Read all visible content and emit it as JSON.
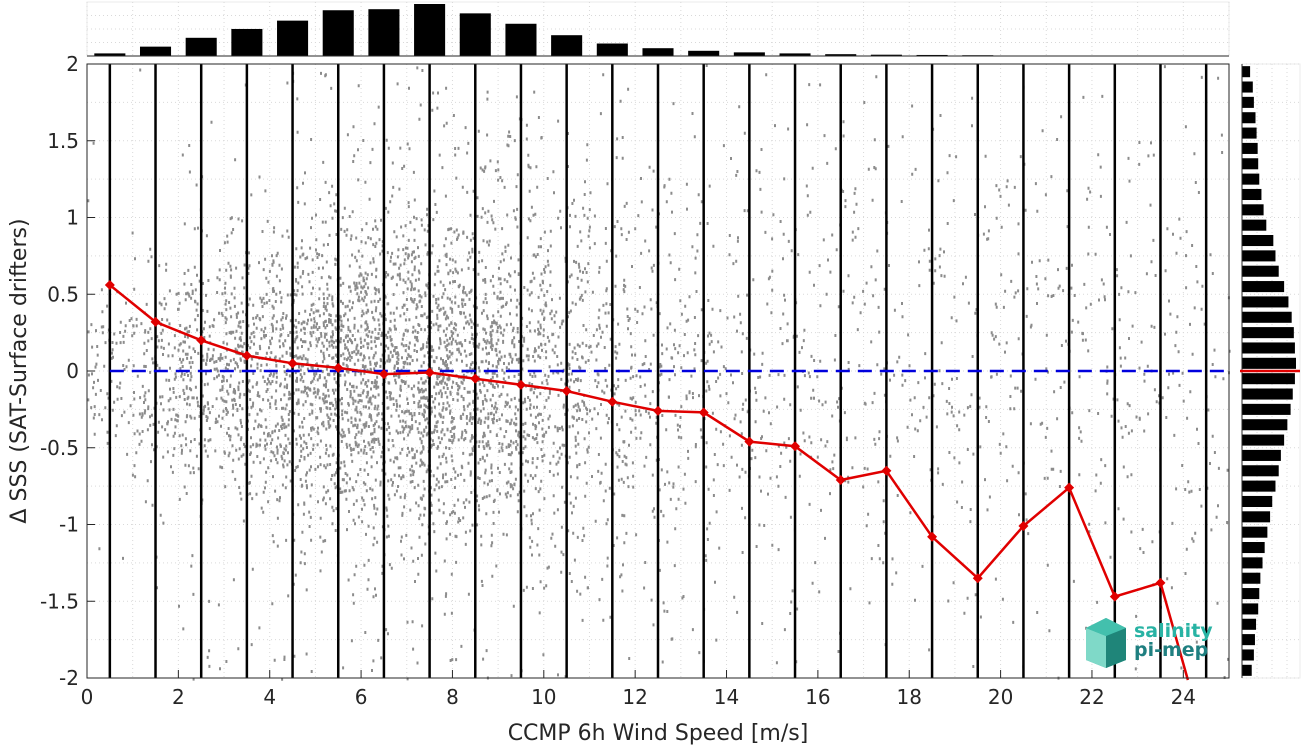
{
  "chart_data": {
    "type": "scatter",
    "title": "",
    "xlabel": "CCMP 6h Wind Speed [m/s]",
    "ylabel": "Δ SSS (SAT-Surface drifters)",
    "xlim": [
      0,
      25
    ],
    "ylim": [
      -2,
      2
    ],
    "x_ticks": [
      0,
      2,
      4,
      6,
      8,
      10,
      12,
      14,
      16,
      18,
      20,
      22,
      24
    ],
    "y_ticks": [
      2,
      1.5,
      1,
      0.5,
      0,
      -0.5,
      -1,
      -1.5,
      -2
    ],
    "grid": true,
    "bin_edges": [
      0.5,
      1.5,
      2.5,
      3.5,
      4.5,
      5.5,
      6.5,
      7.5,
      8.5,
      9.5,
      10.5,
      11.5,
      12.5,
      13.5,
      14.5,
      15.5,
      16.5,
      17.5,
      18.5,
      19.5,
      20.5,
      21.5,
      22.5,
      23.5,
      24.5
    ],
    "zero_line": 0,
    "bin_means": {
      "x": [
        0.5,
        1.5,
        2.5,
        3.5,
        4.5,
        5.5,
        6.5,
        7.5,
        8.5,
        9.5,
        10.5,
        11.5,
        12.5,
        13.5,
        14.5,
        15.5,
        16.5,
        17.5,
        18.5,
        19.5,
        20.5,
        21.5,
        22.5,
        23.5
      ],
      "y": [
        0.56,
        0.32,
        0.2,
        0.1,
        0.05,
        0.02,
        -0.02,
        -0.01,
        -0.05,
        -0.09,
        -0.13,
        -0.2,
        -0.26,
        -0.27,
        -0.46,
        -0.49,
        -0.71,
        -0.65,
        -1.08,
        -1.35,
        -1.01,
        -0.76,
        -1.47,
        -1.38
      ]
    },
    "top_histogram": {
      "x_centers": [
        0.5,
        1.5,
        2.5,
        3.5,
        4.5,
        5.5,
        6.5,
        7.5,
        8.5,
        9.5,
        10.5,
        11.5,
        12.5,
        13.5,
        14.5,
        15.5,
        16.5,
        17.5,
        18.5,
        19.5
      ],
      "relative_counts": [
        0.05,
        0.18,
        0.35,
        0.52,
        0.68,
        0.88,
        0.9,
        1.0,
        0.82,
        0.62,
        0.4,
        0.24,
        0.15,
        0.1,
        0.07,
        0.05,
        0.035,
        0.025,
        0.02,
        0.015
      ]
    },
    "right_histogram": {
      "y_centers": [
        1.95,
        1.85,
        1.75,
        1.65,
        1.55,
        1.45,
        1.35,
        1.25,
        1.15,
        1.05,
        0.95,
        0.85,
        0.75,
        0.65,
        0.55,
        0.45,
        0.35,
        0.25,
        0.15,
        0.05,
        -0.05,
        -0.15,
        -0.25,
        -0.35,
        -0.45,
        -0.55,
        -0.65,
        -0.75,
        -0.85,
        -0.95,
        -1.05,
        -1.15,
        -1.25,
        -1.35,
        -1.45,
        -1.55,
        -1.65,
        -1.75,
        -1.85,
        -1.95
      ],
      "relative_counts": [
        0.15,
        0.2,
        0.22,
        0.25,
        0.27,
        0.29,
        0.3,
        0.32,
        0.36,
        0.4,
        0.45,
        0.58,
        0.62,
        0.68,
        0.78,
        0.86,
        0.92,
        0.96,
        0.98,
        1.0,
        0.98,
        0.94,
        0.9,
        0.84,
        0.78,
        0.72,
        0.68,
        0.62,
        0.56,
        0.52,
        0.47,
        0.42,
        0.38,
        0.34,
        0.32,
        0.3,
        0.26,
        0.24,
        0.22,
        0.18
      ],
      "mean_marker": 0
    },
    "scatter_color": "#8c8c8c",
    "mean_line_color": "#e00000",
    "zero_line_color": "#0000dd",
    "bin_line_color": "#000000"
  },
  "logo": {
    "line1": "salinity",
    "line2": "pi-mep"
  }
}
